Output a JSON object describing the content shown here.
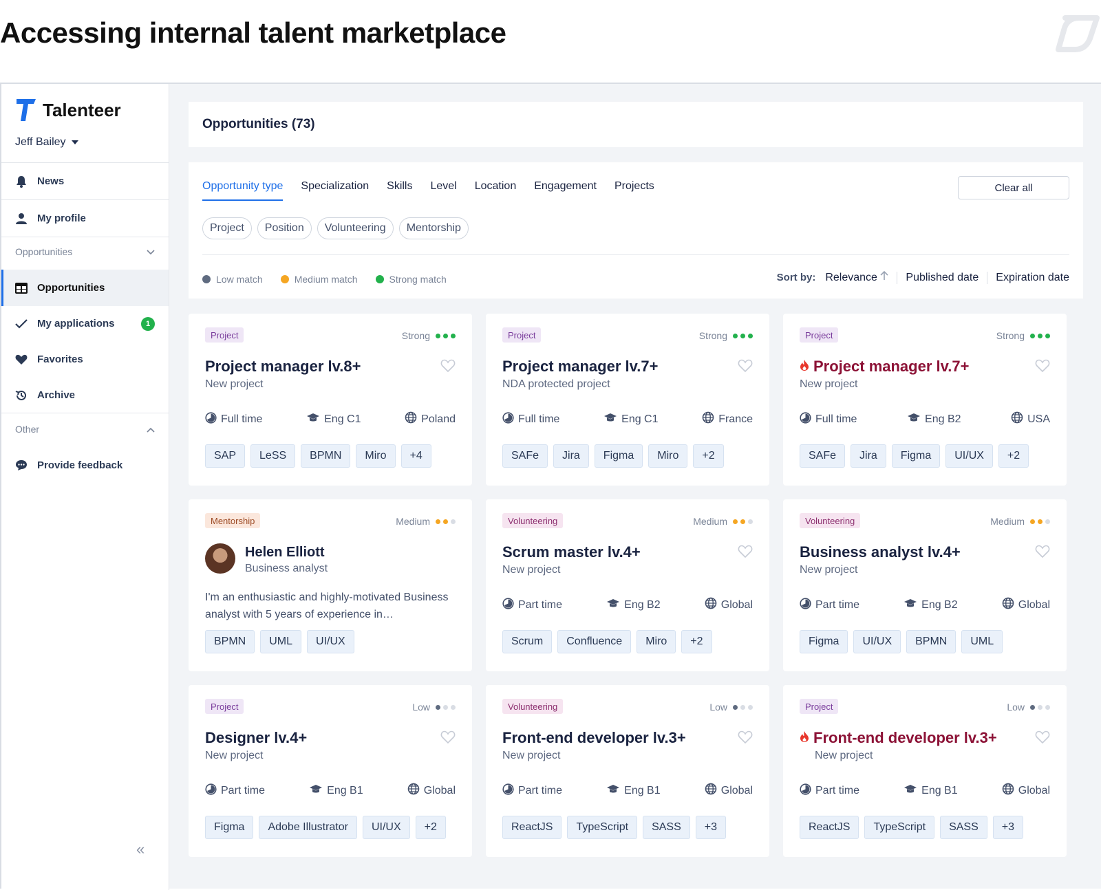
{
  "page_title": "Accessing internal talent marketplace",
  "sidebar": {
    "brand": "Talenteer",
    "user": "Jeff Bailey",
    "top_items": [
      {
        "label": "News",
        "icon": "bell-icon"
      },
      {
        "label": "My profile",
        "icon": "user-icon"
      }
    ],
    "section_opportunities": "Opportunities",
    "opportunity_items": [
      {
        "label": "Opportunities",
        "icon": "table-icon",
        "active": true
      },
      {
        "label": "My applications",
        "icon": "check-icon",
        "badge": "1"
      },
      {
        "label": "Favorites",
        "icon": "heart-icon"
      },
      {
        "label": "Archive",
        "icon": "history-icon"
      }
    ],
    "section_other": "Other",
    "other_items": [
      {
        "label": "Provide feedback",
        "icon": "chat-icon"
      }
    ],
    "collapse": "«"
  },
  "header": {
    "title": "Opportunities (73)"
  },
  "filters": {
    "tabs": [
      "Opportunity type",
      "Specialization",
      "Skills",
      "Level",
      "Location",
      "Engagement",
      "Projects"
    ],
    "active_tab": 0,
    "clear_all": "Clear all",
    "chips": [
      "Project",
      "Position",
      "Volunteering",
      "Mentorship"
    ],
    "legend": [
      {
        "label": "Low match",
        "color": "#5f6b80"
      },
      {
        "label": "Medium match",
        "color": "#f5a623"
      },
      {
        "label": "Strong match",
        "color": "#22b14c"
      }
    ],
    "sort_label": "Sort by:",
    "sort_options": [
      "Relevance",
      "Published date",
      "Expiration date"
    ]
  },
  "colors": {
    "accent": "#1e6fe8",
    "strong": "#22b14c",
    "medium": "#f5a623",
    "low": "#5f6b80",
    "hot": "#8c1236"
  },
  "cards": [
    {
      "type": "Project",
      "match": "Strong",
      "title": "Project manager lv.8+",
      "subtitle": "New project",
      "time": "Full time",
      "english": "Eng C1",
      "location": "Poland",
      "tags": [
        "SAP",
        "LeSS",
        "BPMN",
        "Miro",
        "+4"
      ]
    },
    {
      "type": "Project",
      "match": "Strong",
      "title": "Project manager lv.7+",
      "subtitle": "NDA protected project",
      "time": "Full time",
      "english": "Eng C1",
      "location": "France",
      "tags": [
        "SAFe",
        "Jira",
        "Figma",
        "Miro",
        "+2"
      ]
    },
    {
      "type": "Project",
      "match": "Strong",
      "hot": true,
      "title": "Project manager lv.7+",
      "subtitle": "New project",
      "time": "Full time",
      "english": "Eng B2",
      "location": "USA",
      "tags": [
        "SAFe",
        "Jira",
        "Figma",
        "UI/UX",
        "+2"
      ]
    },
    {
      "type": "Mentorship",
      "match": "Medium",
      "mentor": true,
      "name": "Helen Elliott",
      "role": "Business analyst",
      "description": "I'm an enthusiastic and highly-motivated Business analyst with 5 years of experience in…",
      "tags": [
        "BPMN",
        "UML",
        "UI/UX"
      ]
    },
    {
      "type": "Volunteering",
      "match": "Medium",
      "title": "Scrum master lv.4+",
      "subtitle": "New project",
      "time": "Part time",
      "english": "Eng B2",
      "location": "Global",
      "tags": [
        "Scrum",
        "Confluence",
        "Miro",
        "+2"
      ]
    },
    {
      "type": "Volunteering",
      "match": "Medium",
      "title": "Business analyst lv.4+",
      "subtitle": "New project",
      "time": "Part time",
      "english": "Eng B2",
      "location": "Global",
      "tags": [
        "Figma",
        "UI/UX",
        "BPMN",
        "UML"
      ]
    },
    {
      "type": "Project",
      "match": "Low",
      "title": "Designer lv.4+",
      "subtitle": "New project",
      "time": "Part time",
      "english": "Eng B1",
      "location": "Global",
      "tags": [
        "Figma",
        "Adobe Illustrator",
        "UI/UX",
        "+2"
      ]
    },
    {
      "type": "Volunteering",
      "match": "Low",
      "title": "Front-end developer lv.3+",
      "subtitle": "New project",
      "time": "Part time",
      "english": "Eng B1",
      "location": "Global",
      "tags": [
        "ReactJS",
        "TypeScript",
        "SASS",
        "+3"
      ]
    },
    {
      "type": "Project",
      "match": "Low",
      "hot": true,
      "title": "Front-end developer lv.3+",
      "subtitle": "New project",
      "time": "Part time",
      "english": "Eng B1",
      "location": "Global",
      "tags": [
        "ReactJS",
        "TypeScript",
        "SASS",
        "+3"
      ]
    }
  ]
}
